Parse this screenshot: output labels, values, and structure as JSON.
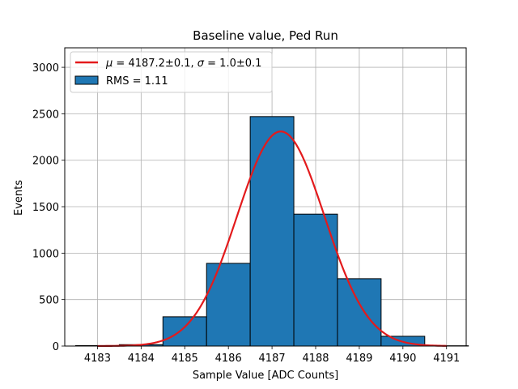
{
  "chart_data": {
    "type": "bar",
    "title": "Baseline value, Ped Run",
    "xlabel": "Sample Value [ADC Counts]",
    "ylabel": "Events",
    "xlim": [
      4182.25,
      4191.45
    ],
    "ylim": [
      0,
      3210
    ],
    "xticks": [
      4183,
      4184,
      4185,
      4186,
      4187,
      4188,
      4189,
      4190,
      4191
    ],
    "yticks": [
      0,
      500,
      1000,
      1500,
      2000,
      2500,
      3000
    ],
    "grid": true,
    "legend_position": "top-left",
    "histogram": {
      "name": "RMS = 1.11",
      "color": "#1f77b4",
      "edge_color": "#000000",
      "bins": [
        {
          "x0": 4182.5,
          "x1": 4183.5,
          "count": 5
        },
        {
          "x0": 4183.5,
          "x1": 4184.5,
          "count": 15
        },
        {
          "x0": 4184.5,
          "x1": 4185.5,
          "count": 315
        },
        {
          "x0": 4185.5,
          "x1": 4186.5,
          "count": 890
        },
        {
          "x0": 4186.5,
          "x1": 4187.5,
          "count": 2470
        },
        {
          "x0": 4187.5,
          "x1": 4188.5,
          "count": 1420
        },
        {
          "x0": 4188.5,
          "x1": 4189.5,
          "count": 725
        },
        {
          "x0": 4189.5,
          "x1": 4190.5,
          "count": 105
        },
        {
          "x0": 4190.5,
          "x1": 4191.5,
          "count": 3
        }
      ]
    },
    "fit": {
      "name_mu_symbol": "μ",
      "name_mu_rest": " = 4187.2±0.1, ",
      "name_sigma_symbol": "σ",
      "name_sigma_rest": " = 1.0±0.1",
      "color": "#e31a1c",
      "type": "gaussian",
      "amplitude": 2310,
      "mean": 4187.2,
      "sigma": 1.0,
      "x_range": [
        4183,
        4191
      ]
    }
  }
}
